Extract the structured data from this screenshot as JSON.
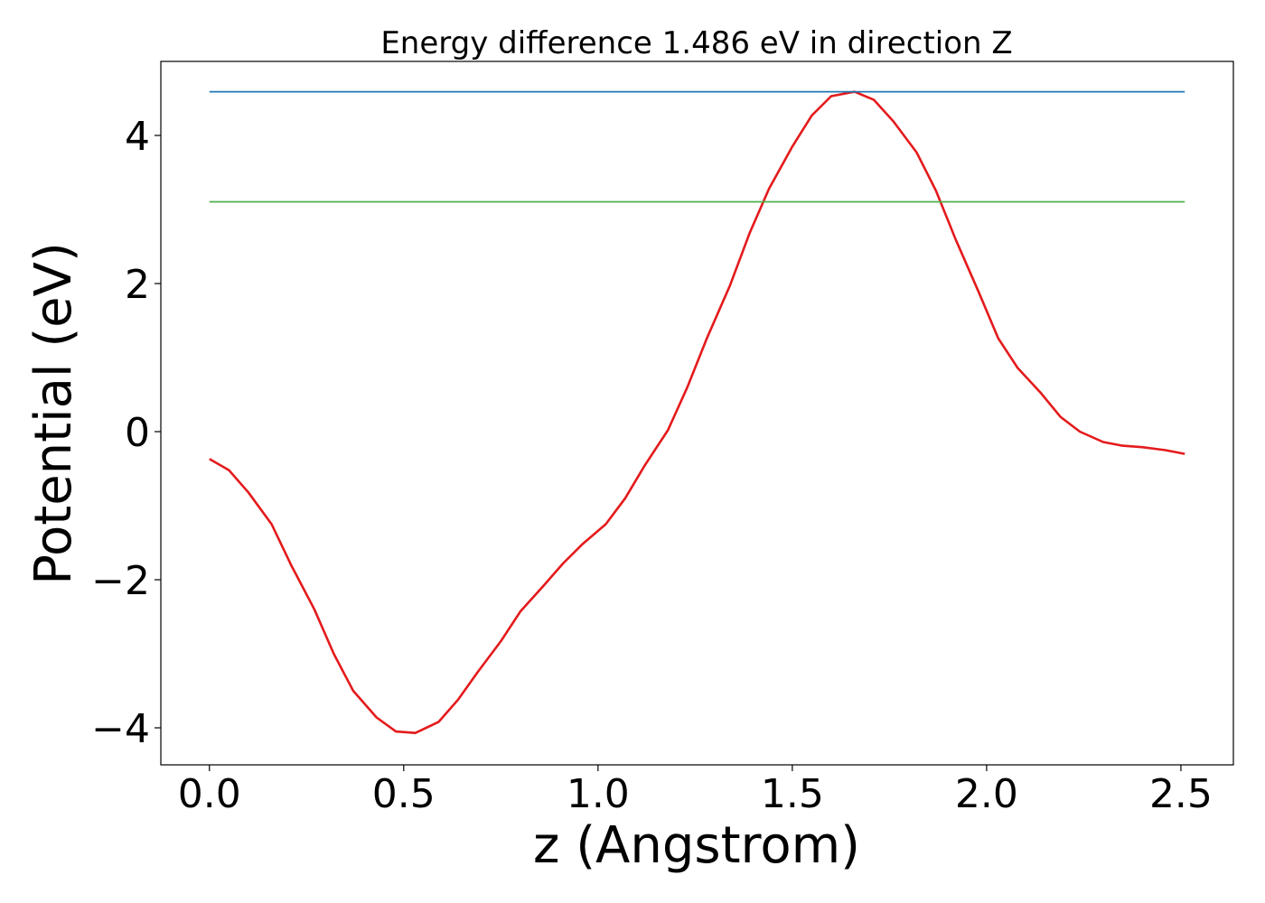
{
  "chart_data": {
    "type": "line",
    "title": "Energy difference 1.486 eV in direction Z",
    "xlabel": "z (Angstrom)",
    "ylabel": "Potential (eV)",
    "xlim": [
      -0.125,
      2.635
    ],
    "ylim": [
      -4.5,
      5.0
    ],
    "grid": false,
    "x_ticks": [
      0.0,
      0.5,
      1.0,
      1.5,
      2.0,
      2.5
    ],
    "x_tick_labels": [
      "0.0",
      "0.5",
      "1.0",
      "1.5",
      "2.0",
      "2.5"
    ],
    "y_ticks": [
      -4,
      -2,
      0,
      2,
      4
    ],
    "y_tick_labels": [
      "−4",
      "−2",
      "0",
      "2",
      "4"
    ],
    "series": [
      {
        "color": "#e41a1c",
        "x": [
          0.0,
          0.05,
          0.1,
          0.16,
          0.21,
          0.27,
          0.32,
          0.37,
          0.43,
          0.48,
          0.53,
          0.59,
          0.64,
          0.69,
          0.75,
          0.8,
          0.86,
          0.91,
          0.96,
          1.02,
          1.07,
          1.12,
          1.18,
          1.23,
          1.28,
          1.34,
          1.39,
          1.44,
          1.5,
          1.55,
          1.6,
          1.66,
          1.71,
          1.76,
          1.82,
          1.87,
          1.92,
          1.98,
          2.03,
          2.08,
          2.14,
          2.19,
          2.24,
          2.3,
          2.35,
          2.4,
          2.46,
          2.51
        ],
        "y": [
          -0.37,
          -0.52,
          -0.82,
          -1.25,
          -1.8,
          -2.4,
          -3.0,
          -3.5,
          -3.86,
          -4.05,
          -4.07,
          -3.92,
          -3.62,
          -3.25,
          -2.83,
          -2.43,
          -2.08,
          -1.78,
          -1.52,
          -1.25,
          -0.9,
          -0.46,
          0.02,
          0.6,
          1.26,
          1.98,
          2.68,
          3.28,
          3.85,
          4.27,
          4.53,
          4.59,
          4.48,
          4.19,
          3.77,
          3.25,
          2.6,
          1.88,
          1.26,
          0.86,
          0.52,
          0.2,
          0.0,
          -0.14,
          -0.19,
          -0.21,
          -0.25,
          -0.3
        ]
      },
      {
        "color": "#1f77b4",
        "x": [
          0.0,
          2.51
        ],
        "y": [
          4.59,
          4.59
        ]
      },
      {
        "color": "#4daf4a",
        "x": [
          0.0,
          2.51
        ],
        "y": [
          3.104,
          3.104
        ]
      }
    ]
  }
}
